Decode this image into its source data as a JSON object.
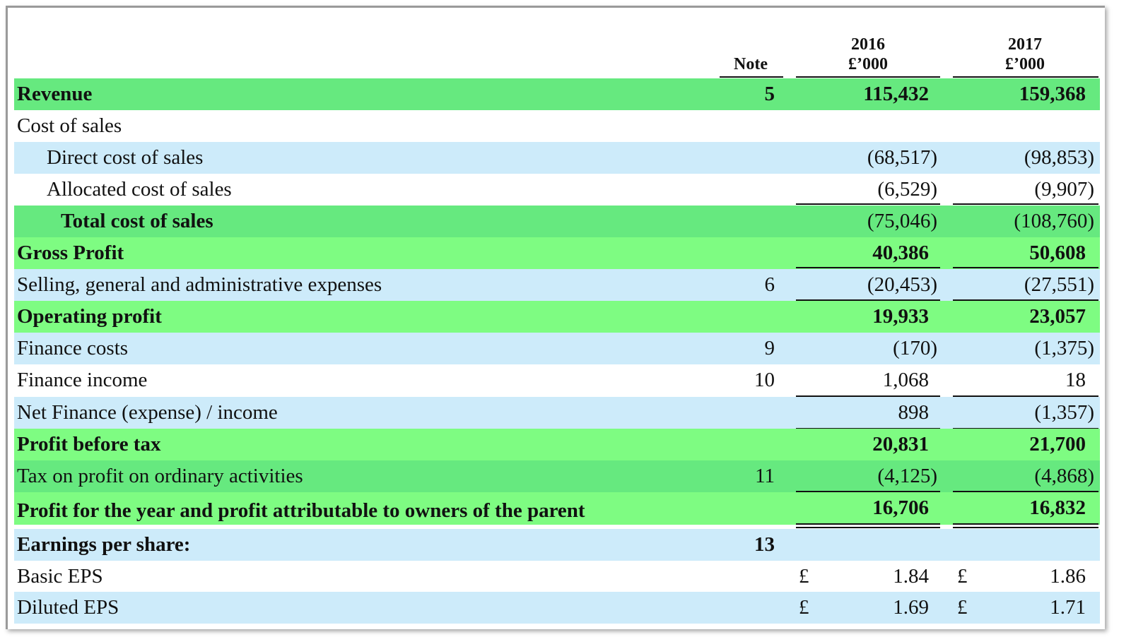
{
  "header": {
    "note_label": "Note",
    "col_2016_year": "2016",
    "col_2016_unit": "£’000",
    "col_2017_year": "2017",
    "col_2017_unit": "£’000"
  },
  "colors": {
    "green_dark": "#66e97f",
    "green_light": "#7efc82",
    "blue_light": "#cdebfa",
    "white": "#ffffff"
  },
  "rows": [
    {
      "label": "Revenue",
      "note": "5",
      "v2016": "115,432",
      "v2017": "159,368"
    },
    {
      "label": "Cost of sales",
      "note": "",
      "v2016": "",
      "v2017": ""
    },
    {
      "label": "Direct cost of sales",
      "note": "",
      "v2016": "(68,517)",
      "v2017": "(98,853)"
    },
    {
      "label": "Allocated cost of sales",
      "note": "",
      "v2016": "(6,529)",
      "v2017": "(9,907)"
    },
    {
      "label": "Total cost of sales",
      "note": "",
      "v2016": "(75,046)",
      "v2017": "(108,760)"
    },
    {
      "label": "Gross Profit",
      "note": "",
      "v2016": "40,386",
      "v2017": "50,608"
    },
    {
      "label": "Selling, general and administrative expenses",
      "note": "6",
      "v2016": "(20,453)",
      "v2017": "(27,551)"
    },
    {
      "label": "Operating profit",
      "note": "",
      "v2016": "19,933",
      "v2017": "23,057"
    },
    {
      "label": "Finance costs",
      "note": "9",
      "v2016": "(170)",
      "v2017": "(1,375)"
    },
    {
      "label": "Finance income",
      "note": "10",
      "v2016": "1,068",
      "v2017": "18"
    },
    {
      "label": "Net Finance (expense) / income",
      "note": "",
      "v2016": "898",
      "v2017": "(1,357)"
    },
    {
      "label": "Profit before tax",
      "note": "",
      "v2016": "20,831",
      "v2017": "21,700"
    },
    {
      "label": "Tax on profit on ordinary activities",
      "note": "11",
      "v2016": "(4,125)",
      "v2017": "(4,868)"
    },
    {
      "label": "Profit for the year and profit attributable to owners of the parent",
      "note": "",
      "v2016": "16,706",
      "v2017": "16,832"
    },
    {
      "label": "Earnings per share:",
      "note": "13",
      "v2016": "",
      "v2017": ""
    },
    {
      "label": "Basic EPS",
      "note": "",
      "cur2016": "£",
      "v2016": "1.84",
      "cur2017": "£",
      "v2017": "1.86"
    },
    {
      "label": "Diluted EPS",
      "note": "",
      "cur2016": "£",
      "v2016": "1.69",
      "cur2017": "£",
      "v2017": "1.71"
    }
  ]
}
